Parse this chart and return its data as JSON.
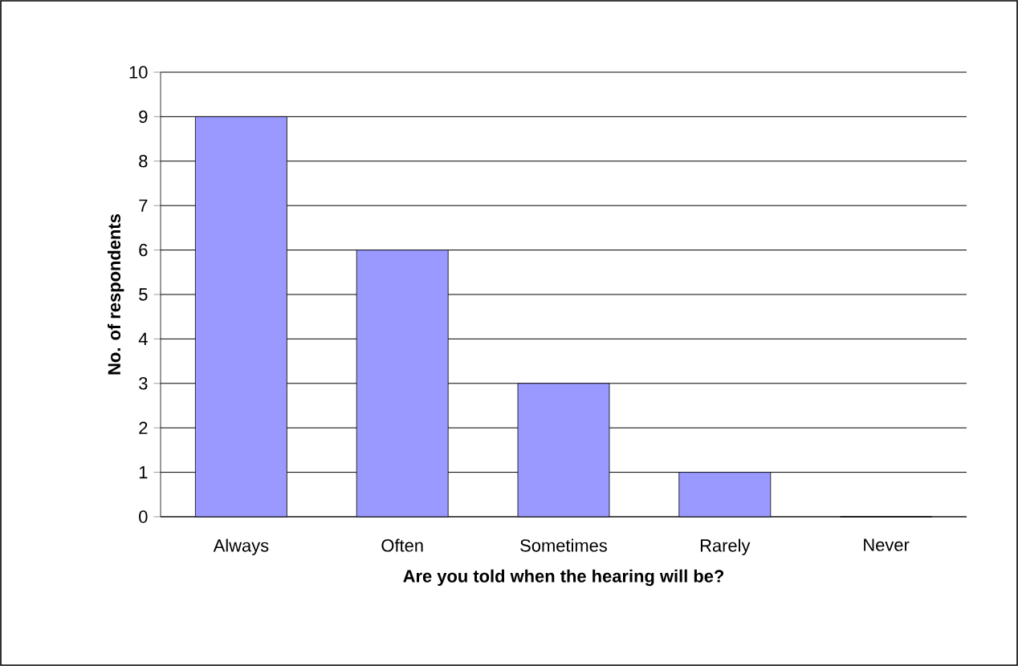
{
  "chart_data": {
    "type": "bar",
    "xlabel": "Are you told when the hearing will be?",
    "ylabel": "No. of respondents",
    "categories": [
      "Always",
      "Often",
      "Sometimes",
      "Rarely",
      "Never"
    ],
    "values": [
      9,
      6,
      3,
      1,
      0
    ],
    "color": "#9999ff",
    "ylim": [
      0,
      10
    ],
    "yticks": [
      0,
      1,
      2,
      3,
      4,
      5,
      6,
      7,
      8,
      9,
      10
    ],
    "grid": "y"
  }
}
